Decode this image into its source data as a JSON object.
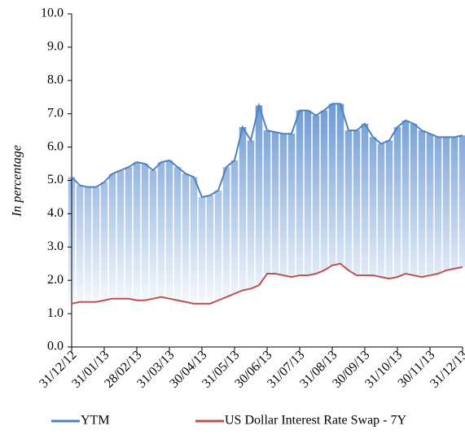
{
  "chart_data": {
    "type": "line",
    "y_label": "In percentage",
    "categories": [
      "31/12/12",
      null,
      null,
      null,
      "31/01/13",
      null,
      null,
      null,
      "28/02/13",
      null,
      null,
      null,
      "31/03/13",
      null,
      null,
      null,
      "30/04/13",
      null,
      null,
      null,
      "31/05/13",
      null,
      null,
      null,
      "30/06/13",
      null,
      null,
      null,
      "31/07/13",
      null,
      null,
      null,
      "31/08/13",
      null,
      null,
      null,
      "30/09/13",
      null,
      null,
      null,
      "31/10/13",
      null,
      null,
      null,
      "30/11/13",
      null,
      null,
      null,
      "31/12/13"
    ],
    "series": [
      {
        "name": "YTM",
        "color": "#4f81bd",
        "values": [
          5.1,
          4.85,
          4.8,
          4.8,
          4.95,
          5.2,
          5.3,
          5.4,
          5.55,
          5.5,
          5.3,
          5.55,
          5.6,
          5.4,
          5.2,
          5.1,
          4.5,
          4.55,
          4.7,
          5.4,
          5.6,
          6.6,
          6.2,
          7.25,
          6.5,
          6.45,
          6.4,
          6.4,
          7.1,
          7.1,
          6.95,
          7.1,
          7.3,
          7.3,
          6.5,
          6.5,
          6.7,
          6.3,
          6.1,
          6.2,
          6.6,
          6.8,
          6.7,
          6.5,
          6.4,
          6.3,
          6.3,
          6.3,
          6.35
        ]
      },
      {
        "name": "US Dollar Interest Rate Swap - 7Y",
        "color": "#c0504d",
        "values": [
          1.3,
          1.35,
          1.35,
          1.35,
          1.4,
          1.45,
          1.45,
          1.45,
          1.4,
          1.4,
          1.45,
          1.5,
          1.45,
          1.4,
          1.35,
          1.3,
          1.3,
          1.3,
          1.4,
          1.5,
          1.6,
          1.7,
          1.75,
          1.85,
          2.2,
          2.2,
          2.15,
          2.1,
          2.15,
          2.15,
          2.2,
          2.3,
          2.45,
          2.5,
          2.3,
          2.15,
          2.15,
          2.15,
          2.1,
          2.05,
          2.1,
          2.2,
          2.15,
          2.1,
          2.15,
          2.2,
          2.3,
          2.35,
          2.4
        ]
      }
    ],
    "ylim": [
      0,
      10
    ],
    "yticks": [
      {
        "value": 0,
        "label": "0.0"
      },
      {
        "value": 1,
        "label": "1.0"
      },
      {
        "value": 2,
        "label": "2.0"
      },
      {
        "value": 3,
        "label": "3.0"
      },
      {
        "value": 4,
        "label": "4.0"
      },
      {
        "value": 5,
        "label": "5.0"
      },
      {
        "value": 6,
        "label": "6.0"
      },
      {
        "value": 7,
        "label": "7.0"
      },
      {
        "value": 8,
        "label": "8.0"
      },
      {
        "value": 9,
        "label": "9.0"
      },
      {
        "value": 10,
        "label": "10.0"
      }
    ],
    "legend": "bottom"
  }
}
